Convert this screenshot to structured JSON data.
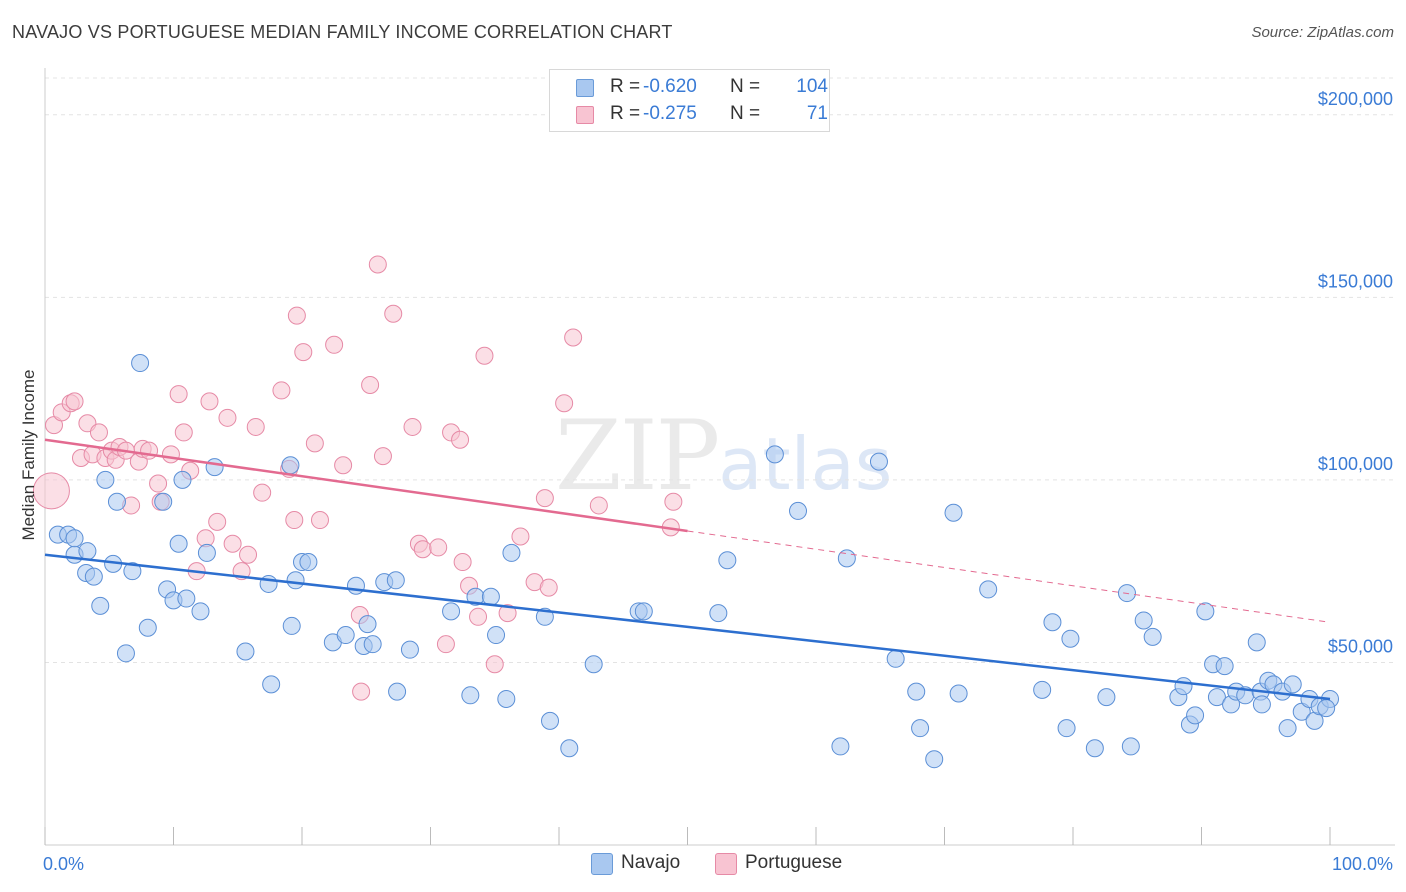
{
  "title": "NAVAJO VS PORTUGUESE MEDIAN FAMILY INCOME CORRELATION CHART",
  "source": "Source: ZipAtlas.com",
  "watermark": {
    "zip": "ZIP",
    "atlas": "atlas"
  },
  "legend": {
    "rows": [
      {
        "r_label": "R =",
        "r_value": "-0.620",
        "n_label": "N =",
        "n_value": "104",
        "color": "#a9c8f0"
      },
      {
        "r_label": "R =",
        "r_value": "-0.275",
        "n_label": "N =",
        "n_value": "71",
        "color": "#f5b8c8"
      }
    ]
  },
  "bottom_legend": [
    {
      "label": "Navajo",
      "color": "#a9c8f0"
    },
    {
      "label": "Portuguese",
      "color": "#f5b8c8"
    }
  ],
  "chart_data": {
    "type": "scatter",
    "title": "NAVAJO VS PORTUGUESE MEDIAN FAMILY INCOME CORRELATION CHART",
    "xlabel": "",
    "ylabel": "Median Family Income",
    "xlim": [
      0,
      100
    ],
    "ylim": [
      0,
      215000
    ],
    "x_tick_labels": [
      "0.0%",
      "100.0%"
    ],
    "y_ticks": [
      50000,
      100000,
      150000,
      200000
    ],
    "y_tick_labels": [
      "$50,000",
      "$100,000",
      "$150,000",
      "$200,000"
    ],
    "grid": true,
    "colors": {
      "navajo_fill": "#a9c8f0",
      "navajo_stroke": "#5b8fd6",
      "navajo_line": "#2d6fcf",
      "portuguese_fill": "#f8c4d2",
      "portuguese_stroke": "#e68aa6",
      "portuguese_line": "#e36a90"
    },
    "series": [
      {
        "name": "Navajo",
        "trend": {
          "x": [
            0,
            100
          ],
          "y": [
            79500,
            40000
          ],
          "dashed_from": null
        },
        "points": [
          [
            1,
            85000
          ],
          [
            1.8,
            85000
          ],
          [
            2.3,
            79500
          ],
          [
            2.3,
            84000
          ],
          [
            3.2,
            74500
          ],
          [
            3.3,
            80500
          ],
          [
            3.8,
            73500
          ],
          [
            4.3,
            65500
          ],
          [
            4.7,
            100000
          ],
          [
            5.6,
            94000
          ],
          [
            5.3,
            77000
          ],
          [
            6.3,
            52500
          ],
          [
            6.8,
            75000
          ],
          [
            7.4,
            132000
          ],
          [
            8,
            59500
          ],
          [
            9.2,
            94000
          ],
          [
            9.5,
            70000
          ],
          [
            10,
            67000
          ],
          [
            10.4,
            82500
          ],
          [
            10.7,
            100000
          ],
          [
            11,
            67500
          ],
          [
            12.1,
            64000
          ],
          [
            12.6,
            80000
          ],
          [
            13.2,
            103500
          ],
          [
            15.6,
            53000
          ],
          [
            17.4,
            71500
          ],
          [
            17.6,
            44000
          ],
          [
            19.1,
            104000
          ],
          [
            19.2,
            60000
          ],
          [
            19.5,
            72500
          ],
          [
            20,
            77500
          ],
          [
            20.5,
            77500
          ],
          [
            22.4,
            55500
          ],
          [
            23.4,
            57500
          ],
          [
            24.2,
            71000
          ],
          [
            24.8,
            54500
          ],
          [
            25.1,
            60500
          ],
          [
            25.5,
            55000
          ],
          [
            26.4,
            72000
          ],
          [
            27.3,
            72500
          ],
          [
            27.4,
            42000
          ],
          [
            28.4,
            53500
          ],
          [
            31.6,
            64000
          ],
          [
            33.1,
            41000
          ],
          [
            33.5,
            68000
          ],
          [
            34.7,
            68000
          ],
          [
            35.1,
            57500
          ],
          [
            35.9,
            40000
          ],
          [
            36.3,
            80000
          ],
          [
            38.9,
            62500
          ],
          [
            39.3,
            34000
          ],
          [
            40.8,
            26500
          ],
          [
            42.7,
            49500
          ],
          [
            46.2,
            64000
          ],
          [
            46.6,
            64000
          ],
          [
            52.4,
            63500
          ],
          [
            53.1,
            78000
          ],
          [
            56.8,
            107000
          ],
          [
            58.6,
            91500
          ],
          [
            61.9,
            27000
          ],
          [
            62.4,
            78500
          ],
          [
            64.9,
            105000
          ],
          [
            66.2,
            51000
          ],
          [
            67.8,
            42000
          ],
          [
            68.1,
            32000
          ],
          [
            69.2,
            23500
          ],
          [
            70.7,
            91000
          ],
          [
            71.1,
            41500
          ],
          [
            73.4,
            70000
          ],
          [
            77.6,
            42500
          ],
          [
            78.4,
            61000
          ],
          [
            79.5,
            32000
          ],
          [
            79.8,
            56500
          ],
          [
            81.7,
            26500
          ],
          [
            82.6,
            40500
          ],
          [
            84.2,
            69000
          ],
          [
            84.5,
            27000
          ],
          [
            85.5,
            61500
          ],
          [
            86.2,
            57000
          ],
          [
            88.2,
            40500
          ],
          [
            88.6,
            43500
          ],
          [
            89.1,
            33000
          ],
          [
            89.5,
            35500
          ],
          [
            90.3,
            64000
          ],
          [
            90.9,
            49500
          ],
          [
            91.2,
            40500
          ],
          [
            91.8,
            49000
          ],
          [
            92.3,
            38500
          ],
          [
            92.7,
            42000
          ],
          [
            93.4,
            41000
          ],
          [
            94.3,
            55500
          ],
          [
            94.6,
            42000
          ],
          [
            94.7,
            38500
          ],
          [
            95.2,
            45000
          ],
          [
            95.6,
            44000
          ],
          [
            96.3,
            42000
          ],
          [
            96.7,
            32000
          ],
          [
            97.1,
            44000
          ],
          [
            97.8,
            36500
          ],
          [
            98.4,
            40000
          ],
          [
            98.8,
            34000
          ],
          [
            99.2,
            38000
          ],
          [
            100,
            40000
          ],
          [
            99.7,
            37500
          ]
        ]
      },
      {
        "name": "Portuguese",
        "trend": {
          "x": [
            0,
            100
          ],
          "y": [
            111000,
            61000
          ],
          "dashed_from": 50
        },
        "points": [
          [
            0.5,
            97000
          ],
          [
            0.7,
            115000
          ],
          [
            1.3,
            118500
          ],
          [
            2,
            121000
          ],
          [
            2.3,
            121500
          ],
          [
            2.8,
            106000
          ],
          [
            3.3,
            115500
          ],
          [
            3.7,
            107000
          ],
          [
            4.2,
            113000
          ],
          [
            4.7,
            106000
          ],
          [
            5.2,
            108000
          ],
          [
            5.5,
            105500
          ],
          [
            5.8,
            109000
          ],
          [
            6.3,
            108000
          ],
          [
            6.7,
            93000
          ],
          [
            7.3,
            105000
          ],
          [
            7.6,
            108500
          ],
          [
            8.1,
            108000
          ],
          [
            8.8,
            99000
          ],
          [
            9,
            94000
          ],
          [
            9.8,
            107000
          ],
          [
            10.4,
            123500
          ],
          [
            10.8,
            113000
          ],
          [
            11.3,
            102500
          ],
          [
            11.8,
            75000
          ],
          [
            12.5,
            84000
          ],
          [
            12.8,
            121500
          ],
          [
            13.4,
            88500
          ],
          [
            14.2,
            117000
          ],
          [
            14.6,
            82500
          ],
          [
            15.3,
            75000
          ],
          [
            15.8,
            79500
          ],
          [
            16.4,
            114500
          ],
          [
            16.9,
            96500
          ],
          [
            18.4,
            124500
          ],
          [
            19,
            103000
          ],
          [
            19.4,
            89000
          ],
          [
            19.6,
            145000
          ],
          [
            20.1,
            135000
          ],
          [
            21,
            110000
          ],
          [
            21.4,
            89000
          ],
          [
            22.5,
            137000
          ],
          [
            23.2,
            104000
          ],
          [
            24.5,
            63000
          ],
          [
            24.6,
            42000
          ],
          [
            25.3,
            126000
          ],
          [
            25.9,
            159000
          ],
          [
            26.3,
            106500
          ],
          [
            27.1,
            145500
          ],
          [
            28.6,
            114500
          ],
          [
            29.1,
            82500
          ],
          [
            29.4,
            81000
          ],
          [
            30.6,
            81500
          ],
          [
            31.2,
            55000
          ],
          [
            31.6,
            113000
          ],
          [
            32.3,
            111000
          ],
          [
            32.5,
            77500
          ],
          [
            33,
            71000
          ],
          [
            33.7,
            62500
          ],
          [
            34.2,
            134000
          ],
          [
            35,
            49500
          ],
          [
            36,
            63500
          ],
          [
            37,
            84500
          ],
          [
            38.1,
            72000
          ],
          [
            38.9,
            95000
          ],
          [
            39.2,
            70500
          ],
          [
            40.4,
            121000
          ],
          [
            41.1,
            139000
          ],
          [
            43.1,
            93000
          ],
          [
            48.7,
            87000
          ],
          [
            48.9,
            94000
          ]
        ]
      }
    ]
  }
}
